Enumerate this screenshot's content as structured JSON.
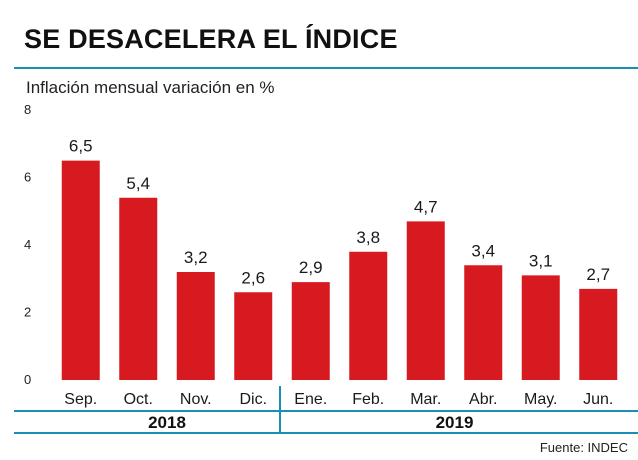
{
  "title": "SE DESACELERA EL ÍNDICE",
  "subtitle": "Inflación mensual variación en %",
  "source": "Fuente: INDEC",
  "colors": {
    "bar": "#d71a20",
    "accent_rule": "#1a8fb6",
    "text": "#1a1a1a"
  },
  "chart_data": {
    "type": "bar",
    "title": "SE DESACELERA EL ÍNDICE",
    "ylabel": "Inflación mensual variación en %",
    "xlabel": "",
    "ylim": [
      0,
      8
    ],
    "yticks": [
      0,
      2,
      4,
      6,
      8
    ],
    "grid": false,
    "categories": [
      "Sep.",
      "Oct.",
      "Nov.",
      "Dic.",
      "Ene.",
      "Feb.",
      "Mar.",
      "Abr.",
      "May.",
      "Jun."
    ],
    "values": [
      6.5,
      5.4,
      3.2,
      2.6,
      2.9,
      3.8,
      4.7,
      3.4,
      3.1,
      2.7
    ],
    "value_labels": [
      "6,5",
      "5,4",
      "3,2",
      "2,6",
      "2,9",
      "3,8",
      "4,7",
      "3,4",
      "3,1",
      "2,7"
    ],
    "groups": [
      {
        "label": "2018",
        "start": 0,
        "end": 3
      },
      {
        "label": "2019",
        "start": 4,
        "end": 9
      }
    ]
  }
}
